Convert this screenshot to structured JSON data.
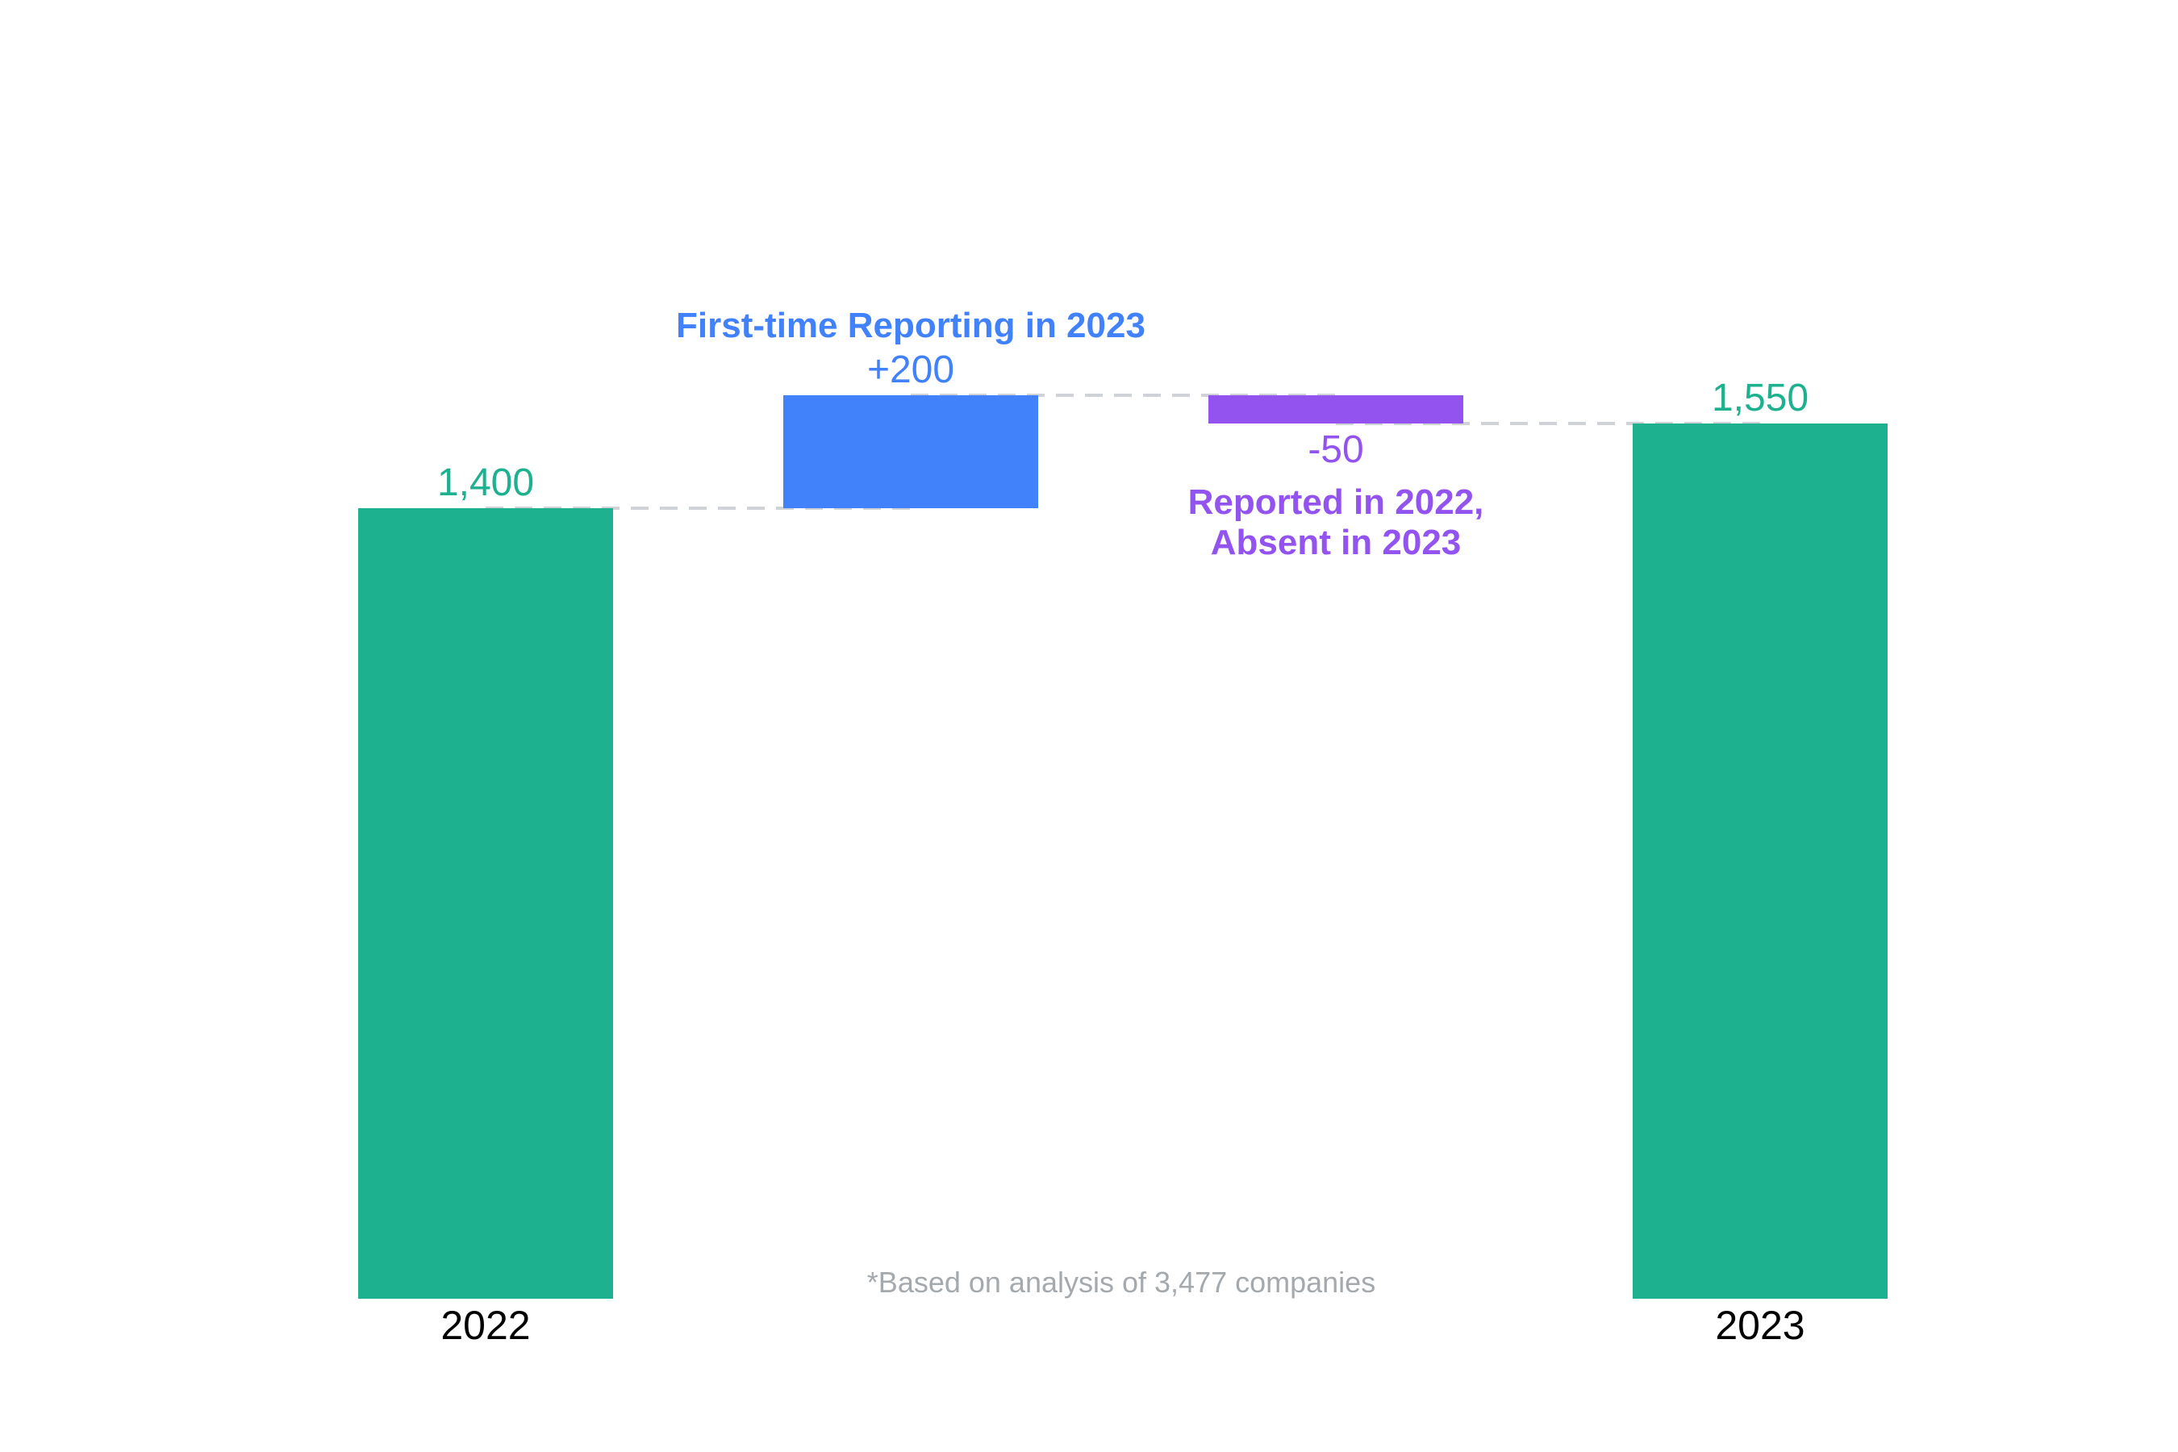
{
  "chart_data": {
    "type": "bar",
    "subtype": "waterfall",
    "categories": [
      "2022",
      "",
      "",
      "2023"
    ],
    "steps": [
      {
        "kind": "total",
        "start": 0,
        "end": 1400,
        "label": "1,400",
        "category": "2022",
        "color": "#1db190"
      },
      {
        "kind": "increase",
        "start": 1400,
        "end": 1600,
        "label": "+200",
        "annotation": [
          "First-time Reporting in 2023"
        ],
        "color": "#4182fb"
      },
      {
        "kind": "decrease",
        "start": 1600,
        "end": 1550,
        "label": "-50",
        "annotation": [
          "Reported in 2022,",
          "Absent in 2023"
        ],
        "color": "#9353ef"
      },
      {
        "kind": "total",
        "start": 0,
        "end": 1550,
        "label": "1,550",
        "category": "2023",
        "color": "#1db190"
      }
    ],
    "ylim": [
      0,
      2700
    ],
    "grid": false,
    "legend": "none",
    "footnote": "*Based on analysis of 3,477 companies",
    "footnote_color": "#a4a9ae",
    "connector_color": "#cfd3d8"
  }
}
